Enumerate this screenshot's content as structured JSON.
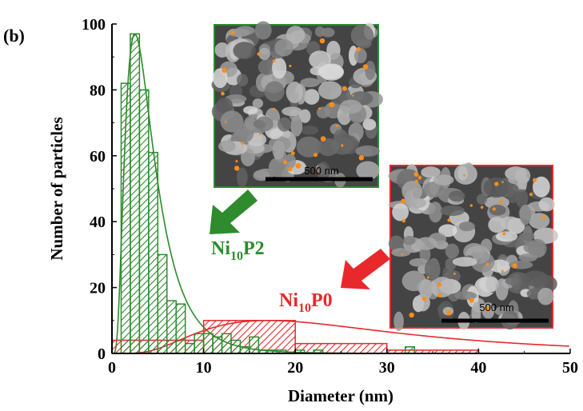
{
  "panel_label": "(b)",
  "colors": {
    "green": "#2e8b2e",
    "red": "#e8282b",
    "particle": "#ff8c1a"
  },
  "chart_data": {
    "type": "bar",
    "xlabel": "Diameter (nm)",
    "ylabel": "Number of particles",
    "xlim": [
      0,
      50
    ],
    "ylim": [
      0,
      100
    ],
    "xticks": [
      0,
      10,
      20,
      30,
      40,
      50
    ],
    "yticks": [
      0,
      20,
      40,
      60,
      80,
      100
    ],
    "grid": false,
    "series": [
      {
        "name_main": "Ni",
        "name_sub": "10",
        "name_end": "P2",
        "color": "#2e8b2e",
        "hatch": "diagonal",
        "bin_width": 1,
        "bins": [
          {
            "x": 1,
            "y": 82
          },
          {
            "x": 2,
            "y": 97
          },
          {
            "x": 3,
            "y": 80
          },
          {
            "x": 4,
            "y": 61
          },
          {
            "x": 5,
            "y": 30
          },
          {
            "x": 6,
            "y": 16
          },
          {
            "x": 7,
            "y": 15
          },
          {
            "x": 8,
            "y": 3
          },
          {
            "x": 9,
            "y": 6
          },
          {
            "x": 10,
            "y": 6
          },
          {
            "x": 11,
            "y": 5
          },
          {
            "x": 12,
            "y": 6
          },
          {
            "x": 13,
            "y": 4
          },
          {
            "x": 14,
            "y": 2
          },
          {
            "x": 15,
            "y": 5
          },
          {
            "x": 16,
            "y": 1
          },
          {
            "x": 17,
            "y": 1
          },
          {
            "x": 18,
            "y": 1
          },
          {
            "x": 20,
            "y": 1
          },
          {
            "x": 22,
            "y": 1
          },
          {
            "x": 32,
            "y": 2
          }
        ],
        "fit": {
          "type": "lognormal",
          "mode": 2.5,
          "peak": 97
        }
      },
      {
        "name_main": "Ni",
        "name_sub": "10",
        "name_end": "P0",
        "color": "#e8282b",
        "hatch": "diagonal",
        "bin_width": 10,
        "bins": [
          {
            "x": 0,
            "y": 4
          },
          {
            "x": 10,
            "y": 10
          },
          {
            "x": 20,
            "y": 3
          },
          {
            "x": 30,
            "y": 1
          }
        ],
        "fit": {
          "type": "lognormal",
          "mode": 17,
          "peak": 10
        }
      }
    ]
  },
  "insets": [
    {
      "scale_bar_label": "500 nm",
      "border": "#2e8b2e"
    },
    {
      "scale_bar_label": "500 nm",
      "border": "#e8282b"
    }
  ]
}
